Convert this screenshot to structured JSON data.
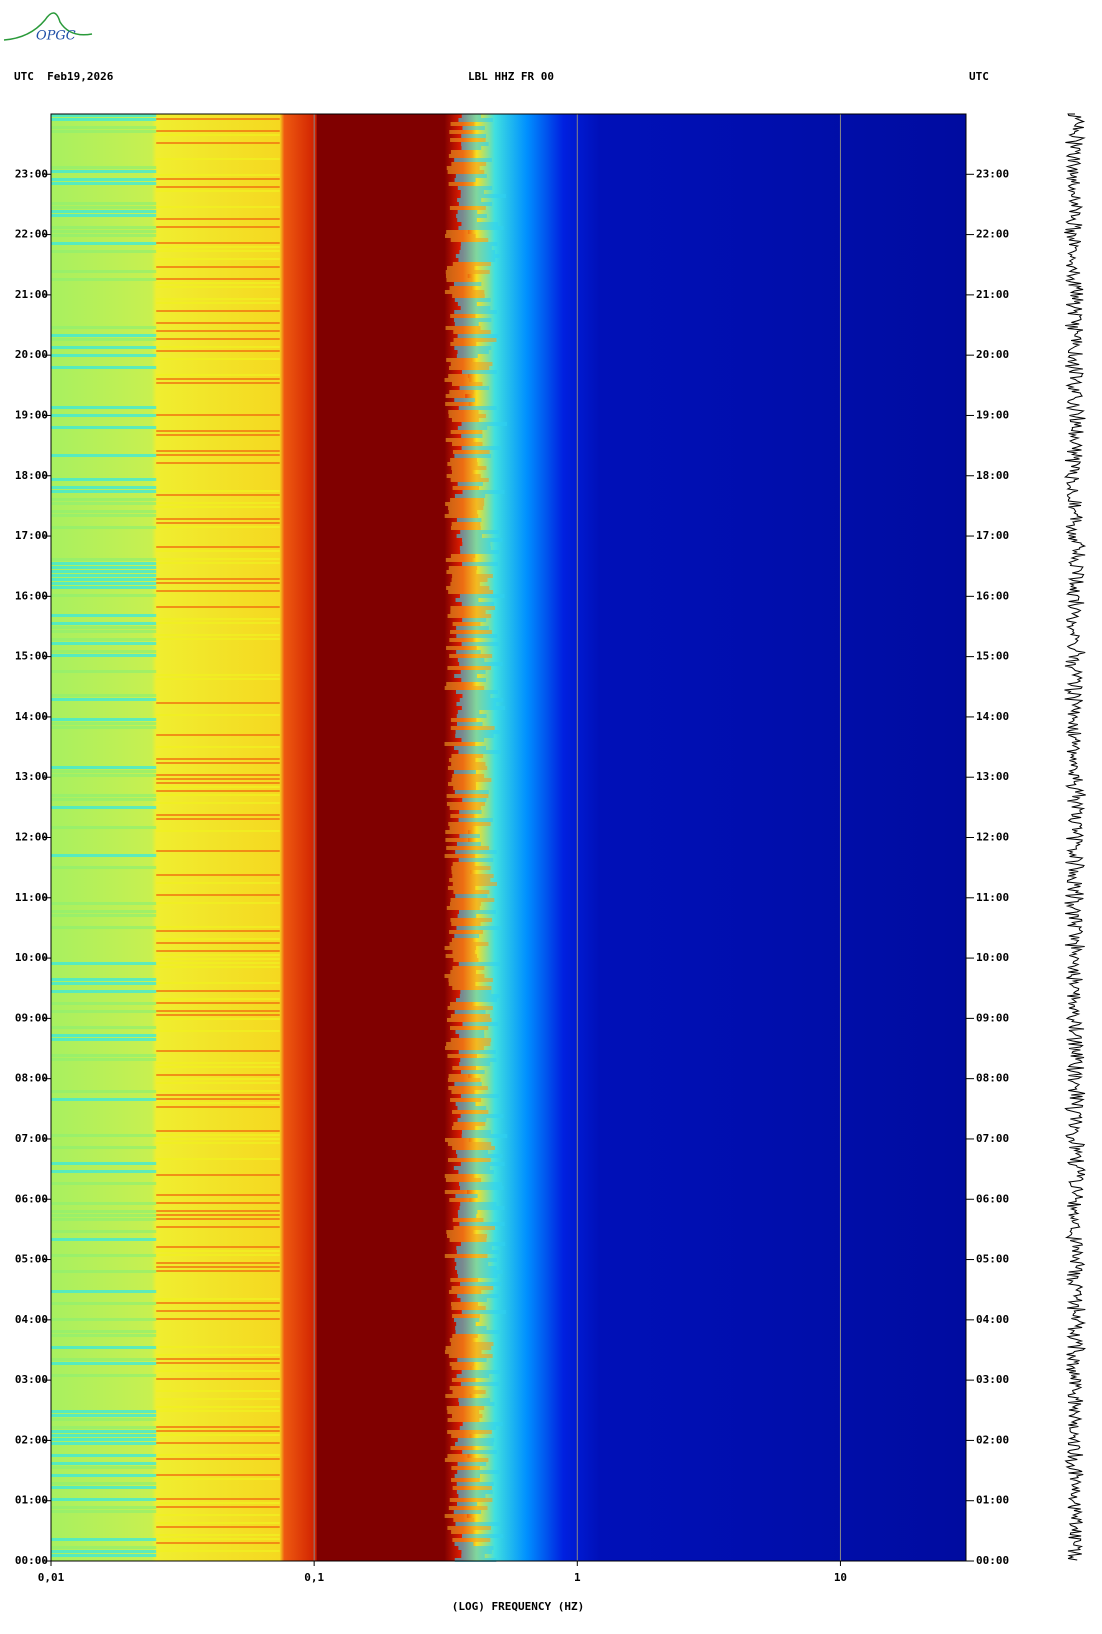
{
  "logo": "OPGC",
  "chart_data": {
    "type": "spectrogram",
    "title": "LBL HHZ FR 00",
    "left_header": "UTC  Feb19,2026",
    "right_header": "UTC",
    "x_label": "(LOG) FREQUENCY (HZ)",
    "x_log": true,
    "xlim": [
      0.01,
      30
    ],
    "xticks": [
      {
        "value": 0.01,
        "label": "0,01"
      },
      {
        "value": 0.1,
        "label": "0,1"
      },
      1,
      10
    ],
    "ylim": [
      0,
      24
    ],
    "yticks": [
      {
        "value": 0,
        "label": "00:00"
      },
      {
        "value": 1,
        "label": "01:00"
      },
      {
        "value": 2,
        "label": "02:00"
      },
      {
        "value": 3,
        "label": "03:00"
      },
      {
        "value": 4,
        "label": "04:00"
      },
      {
        "value": 5,
        "label": "05:00"
      },
      {
        "value": 6,
        "label": "06:00"
      },
      {
        "value": 7,
        "label": "07:00"
      },
      {
        "value": 8,
        "label": "08:00"
      },
      {
        "value": 9,
        "label": "09:00"
      },
      {
        "value": 10,
        "label": "10:00"
      },
      {
        "value": 11,
        "label": "11:00"
      },
      {
        "value": 12,
        "label": "12:00"
      },
      {
        "value": 13,
        "label": "13:00"
      },
      {
        "value": 14,
        "label": "14:00"
      },
      {
        "value": 15,
        "label": "15:00"
      },
      {
        "value": 16,
        "label": "16:00"
      },
      {
        "value": 17,
        "label": "17:00"
      },
      {
        "value": 18,
        "label": "18:00"
      },
      {
        "value": 19,
        "label": "19:00"
      },
      {
        "value": 20,
        "label": "20:00"
      },
      {
        "value": 21,
        "label": "21:00"
      },
      {
        "value": 22,
        "label": "22:00"
      },
      {
        "value": 23,
        "label": "23:00"
      }
    ],
    "grid": true
  }
}
